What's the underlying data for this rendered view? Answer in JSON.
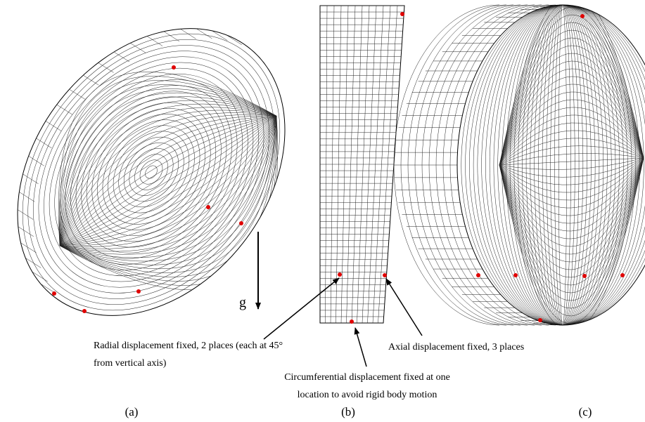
{
  "gravity_label": "g",
  "annotations": {
    "radial": [
      "Radial displacement fixed, 2 places (each at 45°",
      "from vertical axis)"
    ],
    "axial": [
      "Axial displacement fixed, 3 places"
    ],
    "circumferential": [
      "Circumferential displacement fixed at one",
      "location to avoid rigid body motion"
    ]
  },
  "panel_labels": [
    "(a)",
    "(b)",
    "(c)"
  ]
}
